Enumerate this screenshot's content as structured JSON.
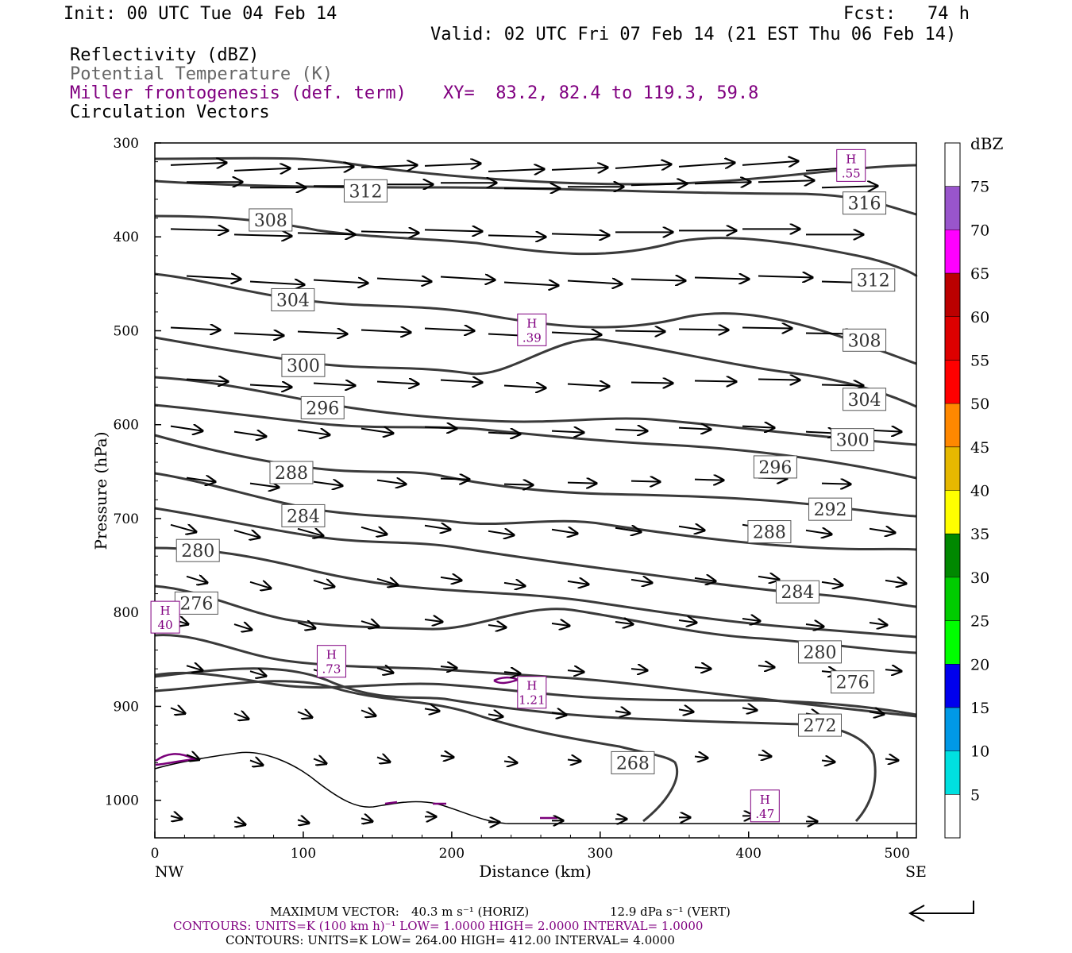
{
  "header": {
    "init": "Init: 00 UTC Tue 04 Feb 14",
    "fcst": "Fcst:   74 h",
    "valid": "Valid: 02 UTC Fri 07 Feb 14 (21 EST Thu 06 Feb 14)",
    "field1": "Reflectivity (dBZ)",
    "field2": "Potential Temperature (K)",
    "field3": "Miller frontogenesis (def. term)",
    "xy": "XY=  83.2, 82.4 to 119.3, 59.8",
    "field4": "Circulation Vectors"
  },
  "footer": {
    "max_vector_label": "MAXIMUM VECTOR:",
    "max_vector_horiz": "40.3 m s⁻¹ (HORIZ)",
    "max_vector_vert": "12.9 dPa s⁻¹ (VERT)",
    "contours1": "CONTOURS:  UNITS=K (100 km h)⁻¹  LOW=  1.0000        HIGH=  2.0000        INTERVAL=    1.0000",
    "contours2": "CONTOURS:  UNITS=K  LOW=  264.00        HIGH=  412.00        INTERVAL=    4.0000"
  },
  "colorbar": {
    "title": "dBZ",
    "labels": [
      "5",
      "10",
      "15",
      "20",
      "25",
      "30",
      "35",
      "40",
      "45",
      "50",
      "55",
      "60",
      "65",
      "70",
      "75"
    ],
    "colors": [
      "#ffffff",
      "#00e0e0",
      "#0099e6",
      "#0000ee",
      "#00ff00",
      "#00cc00",
      "#008800",
      "#ffff00",
      "#e6b800",
      "#ff8800",
      "#ff0000",
      "#dd0000",
      "#bb0000",
      "#ff00ff",
      "#9955cc",
      "#ffffff"
    ]
  },
  "chart_data": {
    "type": "cross-section",
    "xlabel": "Distance (km)",
    "ylabel": "Pressure (hPa)",
    "xlim": [
      0,
      513
    ],
    "ylim": [
      300,
      1040
    ],
    "x_ticks": [
      "0",
      "100",
      "200",
      "300",
      "400",
      "500"
    ],
    "y_ticks": [
      "300",
      "400",
      "500",
      "600",
      "700",
      "800",
      "900",
      "1000"
    ],
    "x_end_labels": {
      "left": "NW",
      "right": "SE"
    },
    "theta_labels": [
      {
        "text": "312",
        "x": 142,
        "p": 351
      },
      {
        "text": "316",
        "x": 478,
        "p": 364
      },
      {
        "text": "308",
        "x": 78,
        "p": 382
      },
      {
        "text": "312",
        "x": 484,
        "p": 446
      },
      {
        "text": "304",
        "x": 93,
        "p": 467
      },
      {
        "text": "308",
        "x": 478,
        "p": 510
      },
      {
        "text": "300",
        "x": 100,
        "p": 537
      },
      {
        "text": "304",
        "x": 478,
        "p": 573
      },
      {
        "text": "296",
        "x": 113,
        "p": 582
      },
      {
        "text": "300",
        "x": 470,
        "p": 616
      },
      {
        "text": "288",
        "x": 92,
        "p": 651
      },
      {
        "text": "296",
        "x": 418,
        "p": 645
      },
      {
        "text": "292",
        "x": 455,
        "p": 690
      },
      {
        "text": "284",
        "x": 100,
        "p": 697
      },
      {
        "text": "288",
        "x": 414,
        "p": 714
      },
      {
        "text": "280",
        "x": 29,
        "p": 734
      },
      {
        "text": "284",
        "x": 433,
        "p": 778
      },
      {
        "text": "276",
        "x": 28,
        "p": 790
      },
      {
        "text": "280",
        "x": 448,
        "p": 842
      },
      {
        "text": "276",
        "x": 470,
        "p": 874
      },
      {
        "text": "272",
        "x": 448,
        "p": 920
      },
      {
        "text": "268",
        "x": 322,
        "p": 960
      }
    ],
    "frontogenesis_highs": [
      {
        "letter": "H",
        "value": ".55",
        "x": 469,
        "p": 324
      },
      {
        "letter": "H",
        "value": ".39",
        "x": 254,
        "p": 499
      },
      {
        "letter": "H",
        "value": "40",
        "x": 7,
        "p": 805
      },
      {
        "letter": "H",
        "value": ".73",
        "x": 119,
        "p": 852
      },
      {
        "letter": "H",
        "value": "1.21",
        "x": 254,
        "p": 885
      },
      {
        "letter": "H",
        "value": ".47",
        "x": 411,
        "p": 1006
      }
    ]
  }
}
